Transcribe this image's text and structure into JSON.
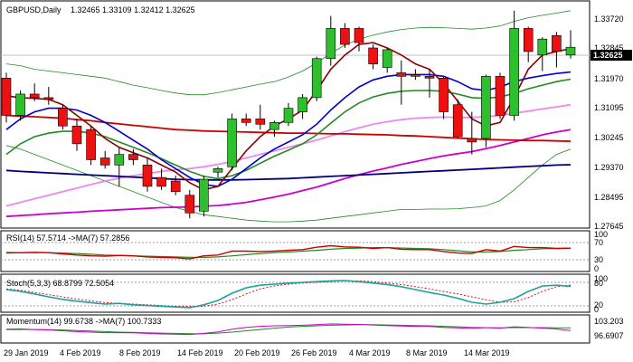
{
  "header": {
    "symbol": "GBPUSD,Daily",
    "ohlc": "1.32465 1.33109 1.32412 1.32625"
  },
  "current_price": "1.32625",
  "colors": {
    "bull": "#2dbf2d",
    "bear": "#ee1111",
    "wick": "#000000",
    "bb_band": "#228b22",
    "ma_fast": "#8b0000",
    "ma_mid": "#0000cc",
    "ma_green": "#228b22",
    "ma_pink_light": "#ee88ee",
    "ma_magenta": "#cc00cc",
    "ma_red": "#cc0000",
    "ma_navy": "#00007a",
    "osc_main": "#20a0a0",
    "osc_signal": "#cc0000",
    "mom_main": "#cc00cc",
    "mom_signal": "#228b22",
    "rsi_main": "#cc0000",
    "rsi_signal": "#228b22",
    "level_line": "#999999",
    "price_tag_bg": "#000000"
  },
  "price_axis": {
    "ticks": [
      "1.33720",
      "1.32845",
      "1.31970",
      "1.31095",
      "1.30245",
      "1.29370",
      "1.28495",
      "1.27645"
    ]
  },
  "panels": {
    "rsi": {
      "label": "RSI(14) 57.5714 ->MA(7) 57.2856",
      "levels": [
        "100",
        "70",
        "30",
        "0"
      ]
    },
    "stoch": {
      "label": "Stoch(5,3,3) 68.8799 72.5054",
      "levels": [
        "100",
        "80",
        "20",
        "0"
      ]
    },
    "momentum": {
      "label": "Momentum(14) 99.6738 ->MA(7) 100.7333",
      "levels": [
        "103.203",
        "96.6907"
      ]
    }
  },
  "date_axis": {
    "ticks": [
      "29 Jan 2019",
      "4 Feb 2019",
      "8 Feb 2019",
      "14 Feb 2019",
      "20 Feb 2019",
      "26 Feb 2019",
      "4 Mar 2019",
      "8 Mar 2019",
      "14 Mar 2019"
    ]
  },
  "chart_data": {
    "type": "candlestick",
    "price_range": [
      1.2755,
      1.339
    ],
    "candles": [
      {
        "o": 1.3175,
        "h": 1.319,
        "l": 1.305,
        "c": 1.307
      },
      {
        "o": 1.307,
        "h": 1.314,
        "l": 1.3055,
        "c": 1.313
      },
      {
        "o": 1.313,
        "h": 1.316,
        "l": 1.311,
        "c": 1.312
      },
      {
        "o": 1.312,
        "h": 1.315,
        "l": 1.31,
        "c": 1.3115
      },
      {
        "o": 1.309,
        "h": 1.31,
        "l": 1.303,
        "c": 1.304
      },
      {
        "o": 1.304,
        "h": 1.306,
        "l": 1.297,
        "c": 1.299
      },
      {
        "o": 1.303,
        "h": 1.304,
        "l": 1.293,
        "c": 1.2945
      },
      {
        "o": 1.295,
        "h": 1.297,
        "l": 1.292,
        "c": 1.293
      },
      {
        "o": 1.293,
        "h": 1.298,
        "l": 1.287,
        "c": 1.296
      },
      {
        "o": 1.296,
        "h": 1.2975,
        "l": 1.293,
        "c": 1.2945
      },
      {
        "o": 1.293,
        "h": 1.295,
        "l": 1.2855,
        "c": 1.287
      },
      {
        "o": 1.2895,
        "h": 1.292,
        "l": 1.286,
        "c": 1.287
      },
      {
        "o": 1.2885,
        "h": 1.29,
        "l": 1.2845,
        "c": 1.2855
      },
      {
        "o": 1.2845,
        "h": 1.286,
        "l": 1.278,
        "c": 1.2795
      },
      {
        "o": 1.28,
        "h": 1.29,
        "l": 1.2785,
        "c": 1.289
      },
      {
        "o": 1.291,
        "h": 1.2925,
        "l": 1.2895,
        "c": 1.292
      },
      {
        "o": 1.2925,
        "h": 1.3075,
        "l": 1.2915,
        "c": 1.306
      },
      {
        "o": 1.306,
        "h": 1.3075,
        "l": 1.304,
        "c": 1.305
      },
      {
        "o": 1.306,
        "h": 1.31,
        "l": 1.303,
        "c": 1.3045
      },
      {
        "o": 1.303,
        "h": 1.3055,
        "l": 1.301,
        "c": 1.305
      },
      {
        "o": 1.305,
        "h": 1.3105,
        "l": 1.304,
        "c": 1.309
      },
      {
        "o": 1.308,
        "h": 1.313,
        "l": 1.306,
        "c": 1.312
      },
      {
        "o": 1.312,
        "h": 1.3235,
        "l": 1.311,
        "c": 1.323
      },
      {
        "o": 1.323,
        "h": 1.335,
        "l": 1.321,
        "c": 1.3315
      },
      {
        "o": 1.3315,
        "h": 1.333,
        "l": 1.326,
        "c": 1.327
      },
      {
        "o": 1.3315,
        "h": 1.332,
        "l": 1.325,
        "c": 1.3275
      },
      {
        "o": 1.326,
        "h": 1.327,
        "l": 1.32,
        "c": 1.3215
      },
      {
        "o": 1.3205,
        "h": 1.326,
        "l": 1.319,
        "c": 1.3255
      },
      {
        "o": 1.319,
        "h": 1.3225,
        "l": 1.31,
        "c": 1.318
      },
      {
        "o": 1.3185,
        "h": 1.32,
        "l": 1.317,
        "c": 1.318
      },
      {
        "o": 1.318,
        "h": 1.32,
        "l": 1.312,
        "c": 1.3175
      },
      {
        "o": 1.3175,
        "h": 1.318,
        "l": 1.306,
        "c": 1.308
      },
      {
        "o": 1.31,
        "h": 1.3115,
        "l": 1.3005,
        "c": 1.301
      },
      {
        "o": 1.3005,
        "h": 1.308,
        "l": 1.296,
        "c": 1.2995
      },
      {
        "o": 1.3005,
        "h": 1.3185,
        "l": 1.298,
        "c": 1.318
      },
      {
        "o": 1.318,
        "h": 1.319,
        "l": 1.306,
        "c": 1.307
      },
      {
        "o": 1.307,
        "h": 1.3365,
        "l": 1.3055,
        "c": 1.3315
      },
      {
        "o": 1.3315,
        "h": 1.332,
        "l": 1.322,
        "c": 1.325
      },
      {
        "o": 1.324,
        "h": 1.329,
        "l": 1.3195,
        "c": 1.3285
      },
      {
        "o": 1.3295,
        "h": 1.3305,
        "l": 1.3205,
        "c": 1.325
      },
      {
        "o": 1.324,
        "h": 1.331,
        "l": 1.323,
        "c": 1.3262
      }
    ],
    "bb_upper": [
      1.3215,
      1.321,
      1.32,
      1.3195,
      1.319,
      1.3185,
      1.318,
      1.3175,
      1.3165,
      1.3155,
      1.3148,
      1.314,
      1.3133,
      1.3128,
      1.3128,
      1.3134,
      1.3142,
      1.315,
      1.3158,
      1.3165,
      1.3178,
      1.3195,
      1.3218,
      1.3245,
      1.3268,
      1.3285,
      1.3296,
      1.3305,
      1.3312,
      1.3316,
      1.3318,
      1.3317,
      1.3315,
      1.3313,
      1.3316,
      1.3322,
      1.3335,
      1.3345,
      1.3352,
      1.3358,
      1.3365
    ],
    "bb_lower": [
      1.2985,
      1.2975,
      1.296,
      1.2945,
      1.293,
      1.2915,
      1.29,
      1.2885,
      1.287,
      1.2855,
      1.284,
      1.2825,
      1.281,
      1.28,
      1.279,
      1.2785,
      1.278,
      1.2775,
      1.2772,
      1.277,
      1.277,
      1.2772,
      1.2775,
      1.278,
      1.2785,
      1.279,
      1.2795,
      1.28,
      1.2805,
      1.2805,
      1.2806,
      1.2806,
      1.2807,
      1.281,
      1.2815,
      1.283,
      1.286,
      1.2895,
      1.293,
      1.296,
      1.2975
    ],
    "ma_fast": [
      1.3125,
      1.312,
      1.3118,
      1.3115,
      1.31,
      1.307,
      1.304,
      1.3005,
      1.298,
      1.2965,
      1.295,
      1.293,
      1.291,
      1.288,
      1.286,
      1.287,
      1.292,
      1.297,
      1.301,
      1.304,
      1.306,
      1.3085,
      1.314,
      1.32,
      1.324,
      1.327,
      1.3275,
      1.326,
      1.324,
      1.3215,
      1.32,
      1.316,
      1.311,
      1.306,
      1.304,
      1.305,
      1.312,
      1.32,
      1.324,
      1.325,
      1.3258
    ],
    "ma_mid": [
      1.303,
      1.306,
      1.308,
      1.309,
      1.309,
      1.3085,
      1.307,
      1.305,
      1.3025,
      1.3,
      1.2975,
      1.2945,
      1.292,
      1.2895,
      1.2875,
      1.287,
      1.289,
      1.292,
      1.295,
      1.2975,
      1.2995,
      1.3015,
      1.3045,
      1.3085,
      1.312,
      1.315,
      1.317,
      1.318,
      1.3185,
      1.3185,
      1.3185,
      1.318,
      1.3165,
      1.3145,
      1.314,
      1.315,
      1.3165,
      1.3175,
      1.3182,
      1.3188,
      1.3192
    ],
    "ma_green": [
      1.296,
      1.299,
      1.301,
      1.302,
      1.3025,
      1.3025,
      1.302,
      1.301,
      1.2995,
      1.298,
      1.2965,
      1.2948,
      1.293,
      1.2912,
      1.2898,
      1.2892,
      1.29,
      1.2915,
      1.2935,
      1.2955,
      1.2972,
      1.299,
      1.3015,
      1.3048,
      1.308,
      1.3105,
      1.3122,
      1.3132,
      1.3138,
      1.314,
      1.314,
      1.3138,
      1.313,
      1.312,
      1.3118,
      1.3122,
      1.3132,
      1.3145,
      1.3155,
      1.3165,
      1.3172
    ],
    "ma_pink_light": [
      1.2815,
      1.2825,
      1.2835,
      1.2845,
      1.2855,
      1.2865,
      1.2875,
      1.2885,
      1.2893,
      1.29,
      1.2906,
      1.2912,
      1.2917,
      1.292,
      1.2925,
      1.2932,
      1.294,
      1.295,
      1.296,
      1.297,
      1.298,
      1.299,
      1.3,
      1.3012,
      1.3024,
      1.3035,
      1.3045,
      1.3052,
      1.3058,
      1.3062,
      1.3064,
      1.3065,
      1.3064,
      1.3064,
      1.3066,
      1.307,
      1.3076,
      1.3082,
      1.3088,
      1.3094,
      1.31
    ],
    "ma_magenta": [
      1.2785,
      1.2788,
      1.279,
      1.2793,
      1.2795,
      1.2797,
      1.28,
      1.2802,
      1.2804,
      1.2806,
      1.2808,
      1.281,
      1.2811,
      1.2812,
      1.2814,
      1.2816,
      1.282,
      1.2825,
      1.2832,
      1.284,
      1.2848,
      1.2858,
      1.2868,
      1.288,
      1.2892,
      1.2903,
      1.2913,
      1.2922,
      1.2932,
      1.294,
      1.2948,
      1.2956,
      1.2962,
      1.2968,
      1.2976,
      1.2985,
      1.2995,
      1.3005,
      1.3015,
      1.3023,
      1.303
    ],
    "ma_red": [
      1.307,
      1.3068,
      1.3066,
      1.3064,
      1.3062,
      1.3058,
      1.3055,
      1.305,
      1.3046,
      1.3042,
      1.3038,
      1.3034,
      1.303,
      1.3028,
      1.3026,
      1.3025,
      1.3024,
      1.3023,
      1.3022,
      1.3021,
      1.302,
      1.302,
      1.3019,
      1.3018,
      1.3018,
      1.3017,
      1.3016,
      1.3015,
      1.3013,
      1.3012,
      1.301,
      1.3008,
      1.3006,
      1.3004,
      1.3002,
      1.3001,
      1.3,
      1.2999,
      1.2999,
      1.2998,
      1.2997
    ],
    "ma_navy": [
      1.2915,
      1.2912,
      1.291,
      1.2908,
      1.2906,
      1.2904,
      1.2902,
      1.29,
      1.2898,
      1.2896,
      1.2894,
      1.2892,
      1.289,
      1.2889,
      1.2888,
      1.2888,
      1.2888,
      1.2889,
      1.289,
      1.2891,
      1.2892,
      1.2894,
      1.2896,
      1.2898,
      1.29,
      1.2902,
      1.2904,
      1.2906,
      1.2908,
      1.291,
      1.2912,
      1.2914,
      1.2916,
      1.2918,
      1.292,
      1.2922,
      1.2924,
      1.2926,
      1.2928,
      1.293,
      1.2931
    ],
    "rsi": {
      "range": [
        0,
        100
      ],
      "main": [
        45,
        46,
        47,
        46,
        43,
        40,
        38,
        37,
        39,
        38,
        35,
        34,
        33,
        30,
        38,
        40,
        50,
        50,
        49,
        50,
        52,
        54,
        60,
        64,
        61,
        60,
        57,
        59,
        55,
        54,
        54,
        49,
        45,
        44,
        54,
        50,
        62,
        59,
        59,
        57,
        57.6
      ],
      "signal": [
        47,
        46,
        46,
        46,
        45,
        44,
        42,
        40,
        39,
        38,
        37,
        36,
        35,
        34,
        34,
        35,
        38,
        41,
        44,
        46,
        48,
        50,
        52,
        55,
        57,
        58,
        59,
        59,
        58,
        57,
        56,
        54,
        51,
        48,
        48,
        49,
        52,
        54,
        56,
        57,
        57.3
      ]
    },
    "stoch": {
      "range": [
        0,
        100
      ],
      "main": [
        60,
        55,
        48,
        40,
        33,
        28,
        24,
        20,
        22,
        18,
        16,
        14,
        12,
        10,
        18,
        30,
        50,
        65,
        72,
        75,
        78,
        80,
        82,
        84,
        85,
        82,
        78,
        74,
        68,
        60,
        52,
        45,
        36,
        25,
        20,
        25,
        35,
        55,
        70,
        72,
        68.9
      ],
      "signal": [
        62,
        58,
        52,
        46,
        40,
        34,
        29,
        24,
        22,
        20,
        18,
        16,
        14,
        13,
        14,
        20,
        32,
        48,
        62,
        70,
        75,
        78,
        80,
        82,
        84,
        84,
        82,
        78,
        74,
        68,
        62,
        55,
        48,
        40,
        32,
        25,
        26,
        38,
        55,
        68,
        72.5
      ]
    },
    "momentum": {
      "range": [
        96.6907,
        103.203
      ],
      "main": [
        100.2,
        100.3,
        100.1,
        99.9,
        99.6,
        99.3,
        99.1,
        98.9,
        98.9,
        98.8,
        98.6,
        98.4,
        98.3,
        98.2,
        98.6,
        99.2,
        100.2,
        100.9,
        101.3,
        101.5,
        101.6,
        101.7,
        101.9,
        102.2,
        102.1,
        102.0,
        101.8,
        101.6,
        101.4,
        101.3,
        101.2,
        100.9,
        100.7,
        100.5,
        100.8,
        100.6,
        101.1,
        100.9,
        100.6,
        100.3,
        99.67
      ],
      "signal": [
        100.0,
        100.1,
        100.1,
        100.0,
        99.9,
        99.7,
        99.5,
        99.3,
        99.1,
        99.0,
        98.8,
        98.7,
        98.6,
        98.5,
        98.5,
        98.7,
        99.1,
        99.6,
        100.1,
        100.6,
        101.0,
        101.3,
        101.5,
        101.7,
        101.8,
        101.9,
        101.9,
        101.8,
        101.7,
        101.6,
        101.5,
        101.3,
        101.1,
        100.9,
        100.8,
        100.7,
        100.8,
        100.8,
        100.8,
        100.75,
        100.73
      ]
    }
  }
}
